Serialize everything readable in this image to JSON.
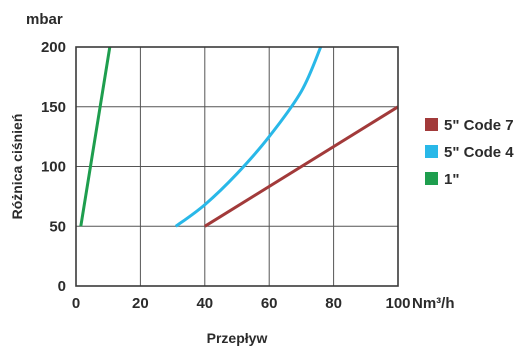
{
  "chart_data": {
    "type": "line",
    "y_unit": "mbar",
    "x_unit": "Nm³/h",
    "xlabel": "Przepływ",
    "ylabel": "Różnica ciśnień",
    "xlim": [
      0,
      100
    ],
    "ylim": [
      0,
      200
    ],
    "x_ticks": [
      0,
      20,
      40,
      60,
      80,
      100
    ],
    "x_tick_labels": [
      "0",
      "20",
      "40",
      "60",
      "80",
      "100"
    ],
    "y_ticks": [
      0,
      50,
      100,
      150,
      200
    ],
    "y_tick_labels": [
      "0",
      "50",
      "100",
      "150",
      "200"
    ],
    "grid": true,
    "legend_position": "right",
    "series": [
      {
        "name": "5\" Code 7",
        "color": "#A23A3A",
        "points": [
          [
            40,
            50
          ],
          [
            100,
            150
          ]
        ]
      },
      {
        "name": "5\" Code 4",
        "color": "#29B8E8",
        "points": [
          [
            31,
            50
          ],
          [
            40,
            68
          ],
          [
            50,
            94
          ],
          [
            60,
            125
          ],
          [
            70,
            163
          ],
          [
            76,
            200
          ]
        ]
      },
      {
        "name": "1\"",
        "color": "#1E9E4E",
        "points": [
          [
            1.5,
            50
          ],
          [
            10.5,
            200
          ]
        ]
      }
    ]
  }
}
